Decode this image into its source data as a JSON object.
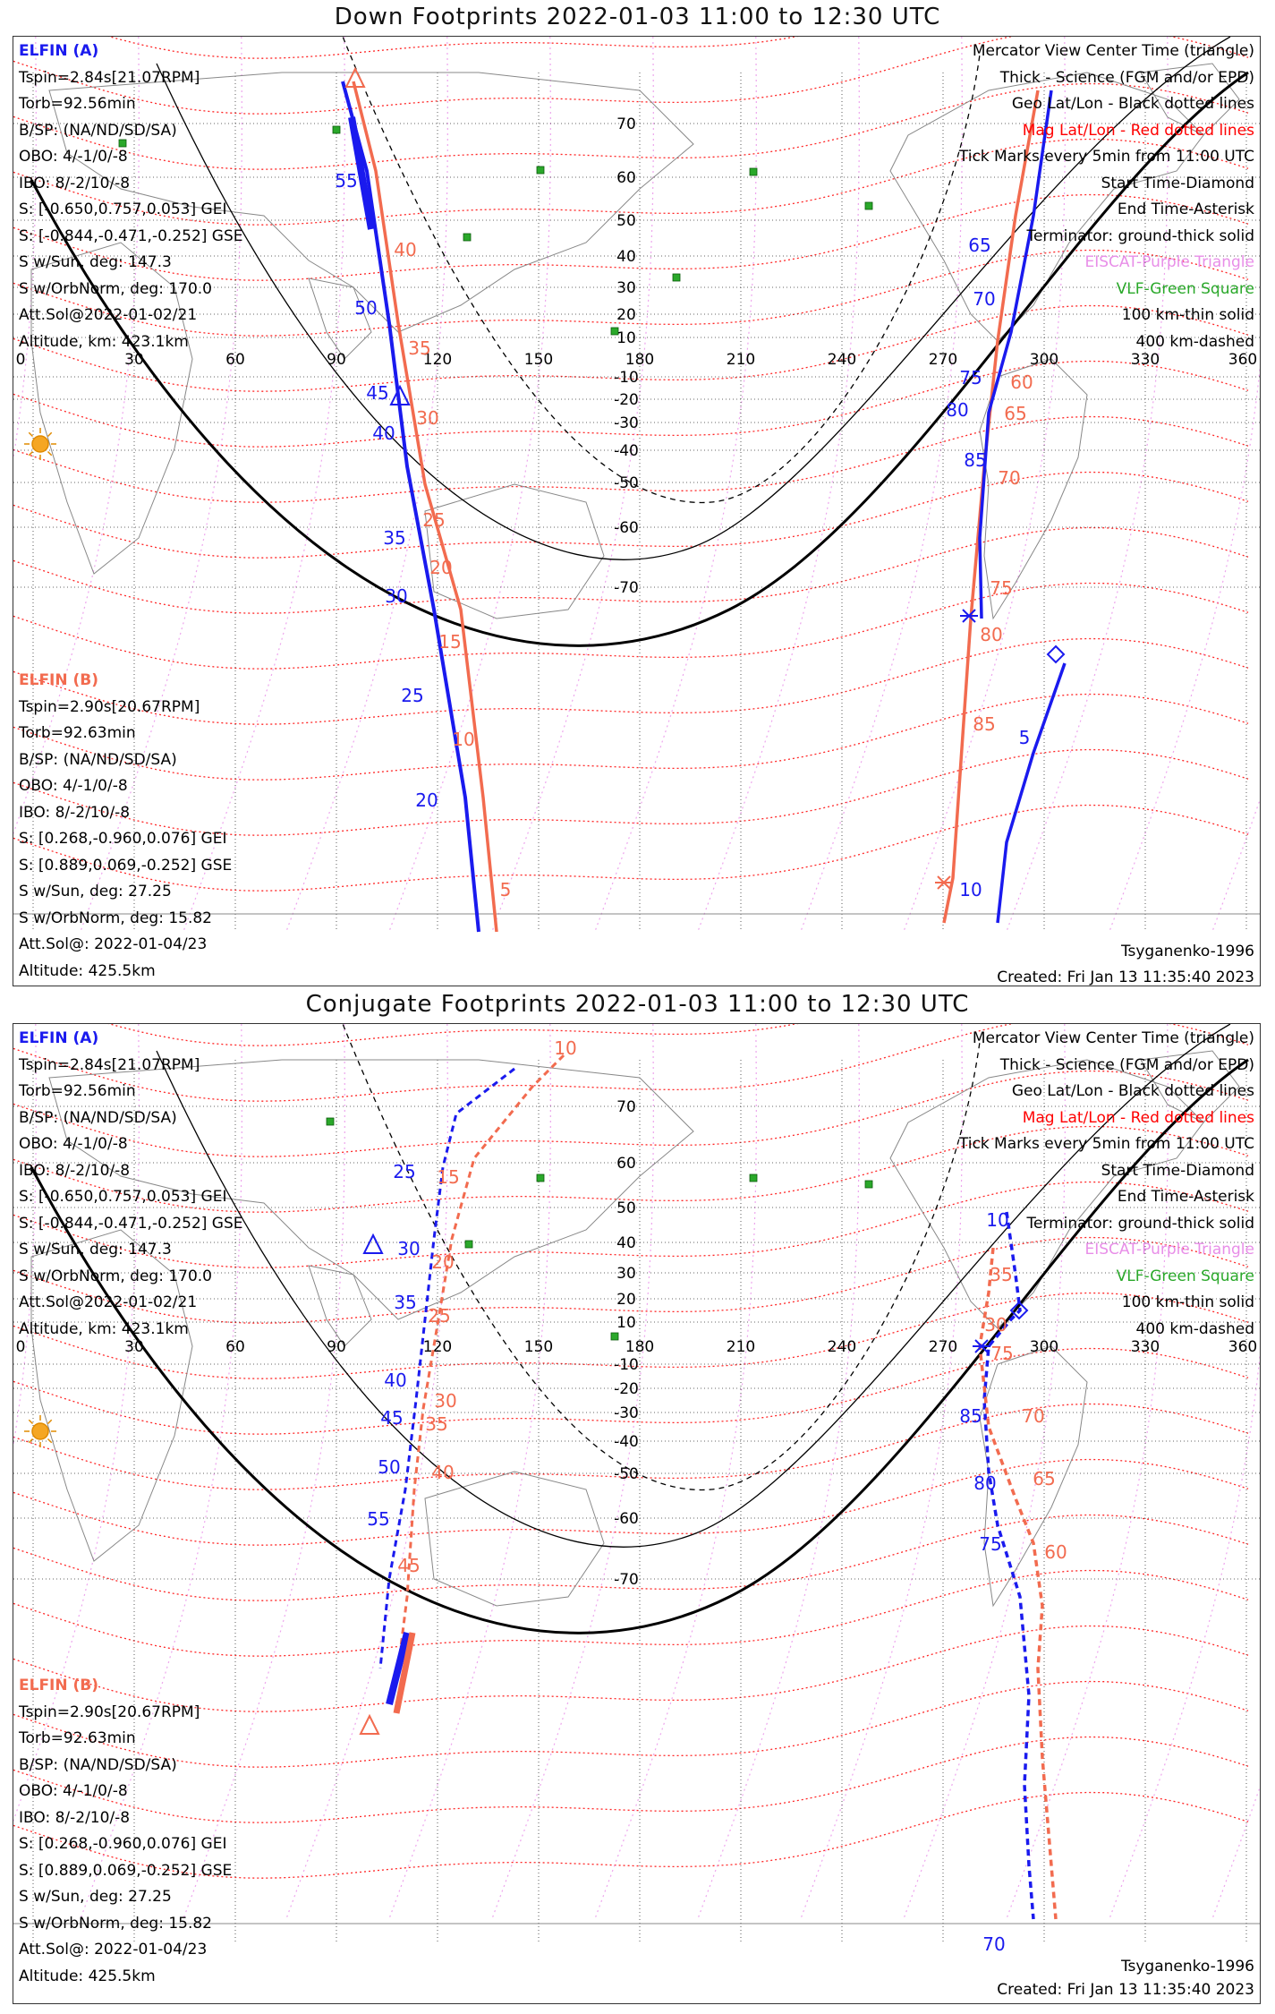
{
  "panels": [
    {
      "title": "Down Footprints 2022-01-03 11:00 to 12:30 UTC",
      "elfin_a": {
        "header": "ELFIN (A)",
        "lines": [
          "Tspin=2.84s[21.07RPM]",
          "Torb=92.56min",
          "B/SP: (NA/ND/SD/SA)",
          "OBO: 4/-1/0/-8",
          "IBO: 8/-2/10/-8",
          "S: [-0.650,0.757,0.053] GEI",
          "S: [-0.844,-0.471,-0.252] GSE",
          "S w/Sun, deg: 147.3",
          "S w/OrbNorm, deg: 170.0",
          "Att.Sol@2022-01-02/21",
          "Altitude, km: 423.1km"
        ]
      },
      "elfin_b": {
        "header": "ELFIN (B)",
        "lines": [
          "Tspin=2.90s[20.67RPM]",
          "Torb=92.63min",
          "B/SP: (NA/ND/SD/SA)",
          "OBO: 4/-1/0/-8",
          "IBO: 8/-2/10/-8",
          "S: [0.268,-0.960,0.076] GEI",
          "S: [0.889,0.069,-0.252] GSE",
          "S w/Sun, deg: 27.25",
          "S w/OrbNorm, deg: 15.82",
          "Att.Sol@: 2022-01-04/23",
          "Altitude: 425.5km"
        ]
      },
      "legend": [
        {
          "text": "Mercator View Center Time (triangle)",
          "color": "blk"
        },
        {
          "text": "Thick - Science (FGM and/or EPD)",
          "color": "blk"
        },
        {
          "text": "Geo Lat/Lon - Black dotted lines",
          "color": "blk"
        },
        {
          "text": "Mag Lat/Lon - Red dotted lines",
          "color": "red"
        },
        {
          "text": "Tick Marks every 5min from 11:00 UTC",
          "color": "blk"
        },
        {
          "text": "Start Time-Diamond",
          "color": "blk"
        },
        {
          "text": "End Time-Asterisk",
          "color": "blk"
        },
        {
          "text": "Terminator: ground-thick solid",
          "color": "blk"
        },
        {
          "text": "EISCAT-Purple Triangle",
          "color": "purple"
        },
        {
          "text": "VLF-Green Square",
          "color": "green"
        },
        {
          "text": "100 km-thin solid",
          "color": "blk"
        },
        {
          "text": "400 km-dashed",
          "color": "blk"
        }
      ],
      "footer_right_1": "Tsyganenko-1996",
      "footer_right_2": "Created: Fri Jan 13 11:35:40 2023",
      "lon_ticks": [
        "0",
        "30",
        "60",
        "90",
        "120",
        "150",
        "180",
        "210",
        "240",
        "270",
        "300",
        "330",
        "360"
      ],
      "lat_ticks": [
        "70",
        "60",
        "50",
        "40",
        "30",
        "20",
        "10",
        "-10",
        "-20",
        "-30",
        "-40",
        "-50",
        "-60",
        "-70"
      ],
      "a_labels": [
        "55",
        "50",
        "45",
        "40",
        "35",
        "30",
        "25",
        "20",
        "10",
        "5",
        "85",
        "80",
        "75",
        "70",
        "65"
      ],
      "b_labels": [
        "40",
        "35",
        "30",
        "25",
        "20",
        "15",
        "10",
        "5",
        "85",
        "80",
        "75",
        "70",
        "65",
        "60"
      ]
    },
    {
      "title": "Conjugate Footprints 2022-01-03 11:00 to 12:30 UTC",
      "elfin_a": {
        "header": "ELFIN (A)",
        "lines": [
          "Tspin=2.84s[21.07RPM]",
          "Torb=92.56min",
          "B/SP: (NA/ND/SD/SA)",
          "OBO: 4/-1/0/-8",
          "IBO: 8/-2/10/-8",
          "S: [-0.650,0.757,0.053] GEI",
          "S: [-0.844,-0.471,-0.252] GSE",
          "S w/Sun, deg: 147.3",
          "S w/OrbNorm, deg: 170.0",
          "Att.Sol@2022-01-02/21",
          "Altitude, km: 423.1km"
        ]
      },
      "elfin_b": {
        "header": "ELFIN (B)",
        "lines": [
          "Tspin=2.90s[20.67RPM]",
          "Torb=92.63min",
          "B/SP: (NA/ND/SD/SA)",
          "OBO: 4/-1/0/-8",
          "IBO: 8/-2/10/-8",
          "S: [0.268,-0.960,0.076] GEI",
          "S: [0.889,0.069,-0.252] GSE",
          "S w/Sun, deg: 27.25",
          "S w/OrbNorm, deg: 15.82",
          "Att.Sol@: 2022-01-04/23",
          "Altitude: 425.5km"
        ]
      },
      "legend": [
        {
          "text": "Mercator View Center Time (triangle)",
          "color": "blk"
        },
        {
          "text": "Thick - Science (FGM and/or EPD)",
          "color": "blk"
        },
        {
          "text": "Geo Lat/Lon - Black dotted lines",
          "color": "blk"
        },
        {
          "text": "Mag Lat/Lon - Red dotted lines",
          "color": "red"
        },
        {
          "text": "Tick Marks every 5min from 11:00 UTC",
          "color": "blk"
        },
        {
          "text": "Start Time-Diamond",
          "color": "blk"
        },
        {
          "text": "End Time-Asterisk",
          "color": "blk"
        },
        {
          "text": "Terminator: ground-thick solid",
          "color": "blk"
        },
        {
          "text": "EISCAT-Purple Triangle",
          "color": "purple"
        },
        {
          "text": "VLF-Green Square",
          "color": "green"
        },
        {
          "text": "100 km-thin solid",
          "color": "blk"
        },
        {
          "text": "400 km-dashed",
          "color": "blk"
        }
      ],
      "footer_right_1": "Tsyganenko-1996",
      "footer_right_2": "Created: Fri Jan 13 11:35:40 2023",
      "lon_ticks": [
        "0",
        "30",
        "60",
        "90",
        "120",
        "150",
        "180",
        "210",
        "240",
        "270",
        "300",
        "330",
        "360"
      ],
      "lat_ticks": [
        "70",
        "60",
        "50",
        "40",
        "30",
        "20",
        "10",
        "-10",
        "-20",
        "-30",
        "-40",
        "-50",
        "-60",
        "-70"
      ],
      "a_labels": [
        "25",
        "30",
        "35",
        "40",
        "45",
        "50",
        "55",
        "10",
        "85",
        "80",
        "75",
        "70"
      ],
      "b_labels": [
        "10",
        "15",
        "20",
        "25",
        "30",
        "35",
        "40",
        "45",
        "35",
        "30",
        "75",
        "70",
        "65",
        "60"
      ]
    }
  ],
  "colors": {
    "elfin_a": "#1a1aee",
    "elfin_b": "#f26b4f",
    "mag_grid": "#f00",
    "eiscat": "#e88ee8",
    "vlf": "#2aa82a"
  }
}
